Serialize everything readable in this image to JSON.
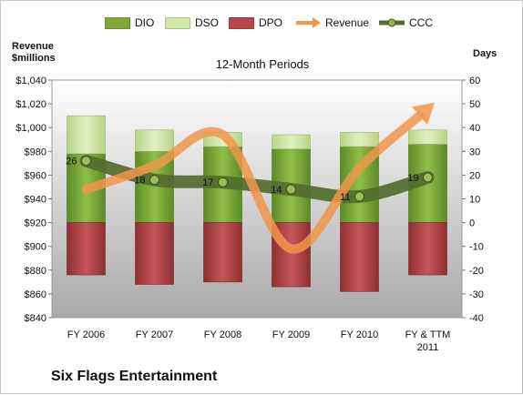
{
  "chart_data": {
    "type": "bar",
    "title": "12-Month Periods",
    "company": "Six Flags Entertainment",
    "y_left_label_line1": "Revenue",
    "y_left_label_line2": "$millions",
    "y_right_label": "Days",
    "categories": [
      "FY 2006",
      "FY 2007",
      "FY 2008",
      "FY 2009",
      "FY 2010",
      "FY & TTM 2011"
    ],
    "y_left": {
      "min": 840,
      "max": 1040,
      "step": 20,
      "prefix": "$"
    },
    "y_right": {
      "min": -40,
      "max": 60,
      "step": 10
    },
    "legend": [
      "DIO",
      "DSO",
      "DPO",
      "Revenue",
      "CCC"
    ],
    "series": [
      {
        "name": "DIO",
        "axis": "right",
        "stacked": true,
        "color": "#7fa83a",
        "values": [
          29,
          30,
          32,
          31,
          32,
          33
        ]
      },
      {
        "name": "DSO",
        "axis": "right",
        "stacked": true,
        "color": "#d2e6a6",
        "values": [
          16,
          9,
          6,
          6,
          6,
          6
        ]
      },
      {
        "name": "DPO",
        "axis": "right",
        "stacked": true,
        "color": "#b5474a",
        "values": [
          -22,
          -26,
          -25,
          -27,
          -29,
          -22
        ]
      },
      {
        "name": "Revenue",
        "axis": "left",
        "type": "line",
        "color": "#f0974a",
        "values": [
          948,
          968,
          994,
          898,
          966,
          1016
        ]
      },
      {
        "name": "CCC",
        "axis": "right",
        "type": "line",
        "color": "#556b2f",
        "values": [
          26,
          18,
          17,
          14,
          11,
          19
        ],
        "labels": [
          "26",
          "18",
          "17",
          "14",
          "11",
          "19"
        ]
      }
    ],
    "grid": false,
    "legend_position": "top"
  }
}
